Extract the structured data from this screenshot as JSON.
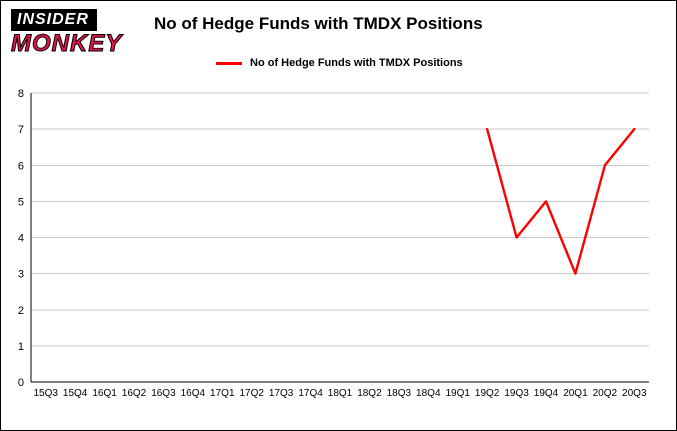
{
  "logo": {
    "line1": "INSIDER",
    "line2": "MONKEY"
  },
  "title": "No of Hedge Funds with TMDX Positions",
  "legend": {
    "label": "No of Hedge Funds with TMDX Positions",
    "color": "#ff0000"
  },
  "chart_data": {
    "type": "line",
    "title": "No of Hedge Funds with TMDX Positions",
    "categories": [
      "15Q3",
      "15Q4",
      "16Q1",
      "16Q2",
      "16Q3",
      "16Q4",
      "17Q1",
      "17Q2",
      "17Q3",
      "17Q4",
      "18Q1",
      "18Q2",
      "18Q3",
      "18Q4",
      "19Q1",
      "19Q2",
      "19Q3",
      "19Q4",
      "20Q1",
      "20Q2",
      "20Q3"
    ],
    "series": [
      {
        "name": "No of Hedge Funds with TMDX Positions",
        "values": [
          null,
          null,
          null,
          null,
          null,
          null,
          null,
          null,
          null,
          null,
          null,
          null,
          null,
          null,
          null,
          7,
          4,
          5,
          3,
          6,
          7
        ]
      }
    ],
    "xlabel": "",
    "ylabel": "",
    "ylim": [
      0,
      8
    ],
    "yticks": [
      0,
      1,
      2,
      3,
      4,
      5,
      6,
      7,
      8
    ],
    "grid": true,
    "line_color": "#ff0000",
    "legend_position": "top"
  }
}
